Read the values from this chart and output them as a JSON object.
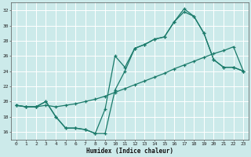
{
  "xlabel": "Humidex (Indice chaleur)",
  "bg_color": "#cceaea",
  "line_color": "#1a7a6a",
  "grid_color": "#ffffff",
  "xlim": [
    -0.5,
    23.5
  ],
  "ylim": [
    15.0,
    33.0
  ],
  "xticks": [
    0,
    1,
    2,
    3,
    4,
    5,
    6,
    7,
    8,
    9,
    10,
    11,
    12,
    13,
    14,
    15,
    16,
    17,
    18,
    19,
    20,
    21,
    22,
    23
  ],
  "yticks": [
    16,
    18,
    20,
    22,
    24,
    26,
    28,
    30,
    32
  ],
  "line1_x": [
    0,
    1,
    2,
    3,
    4,
    5,
    6,
    7,
    8,
    9,
    10,
    11,
    12,
    13,
    14,
    15,
    16,
    17,
    18,
    19,
    20,
    21,
    22,
    23
  ],
  "line1_y": [
    19.5,
    19.3,
    19.3,
    19.5,
    19.3,
    19.5,
    19.7,
    20.0,
    20.3,
    20.7,
    21.2,
    21.7,
    22.2,
    22.7,
    23.2,
    23.7,
    24.3,
    24.8,
    25.3,
    25.8,
    26.3,
    26.7,
    27.2,
    24.0
  ],
  "line2_x": [
    0,
    1,
    2,
    3,
    4,
    5,
    6,
    7,
    8,
    9,
    10,
    11,
    12,
    13,
    14,
    15,
    16,
    17,
    18,
    19,
    20,
    21,
    22,
    23
  ],
  "line2_y": [
    19.5,
    19.3,
    19.3,
    20.0,
    18.0,
    16.5,
    16.5,
    16.3,
    15.8,
    15.8,
    21.5,
    24.0,
    27.0,
    27.5,
    28.2,
    28.5,
    30.5,
    32.2,
    31.2,
    29.0,
    25.5,
    24.5,
    24.5,
    24.0
  ],
  "line3_x": [
    0,
    1,
    2,
    3,
    4,
    5,
    6,
    7,
    8,
    9,
    10,
    11,
    12,
    13,
    14,
    15,
    16,
    17,
    18,
    19,
    20,
    21,
    22,
    23
  ],
  "line3_y": [
    19.5,
    19.3,
    19.3,
    20.0,
    18.0,
    16.5,
    16.5,
    16.3,
    15.8,
    19.0,
    26.0,
    24.5,
    27.0,
    27.5,
    28.2,
    28.5,
    30.5,
    31.8,
    31.2,
    29.0,
    25.5,
    24.5,
    24.5,
    24.0
  ]
}
